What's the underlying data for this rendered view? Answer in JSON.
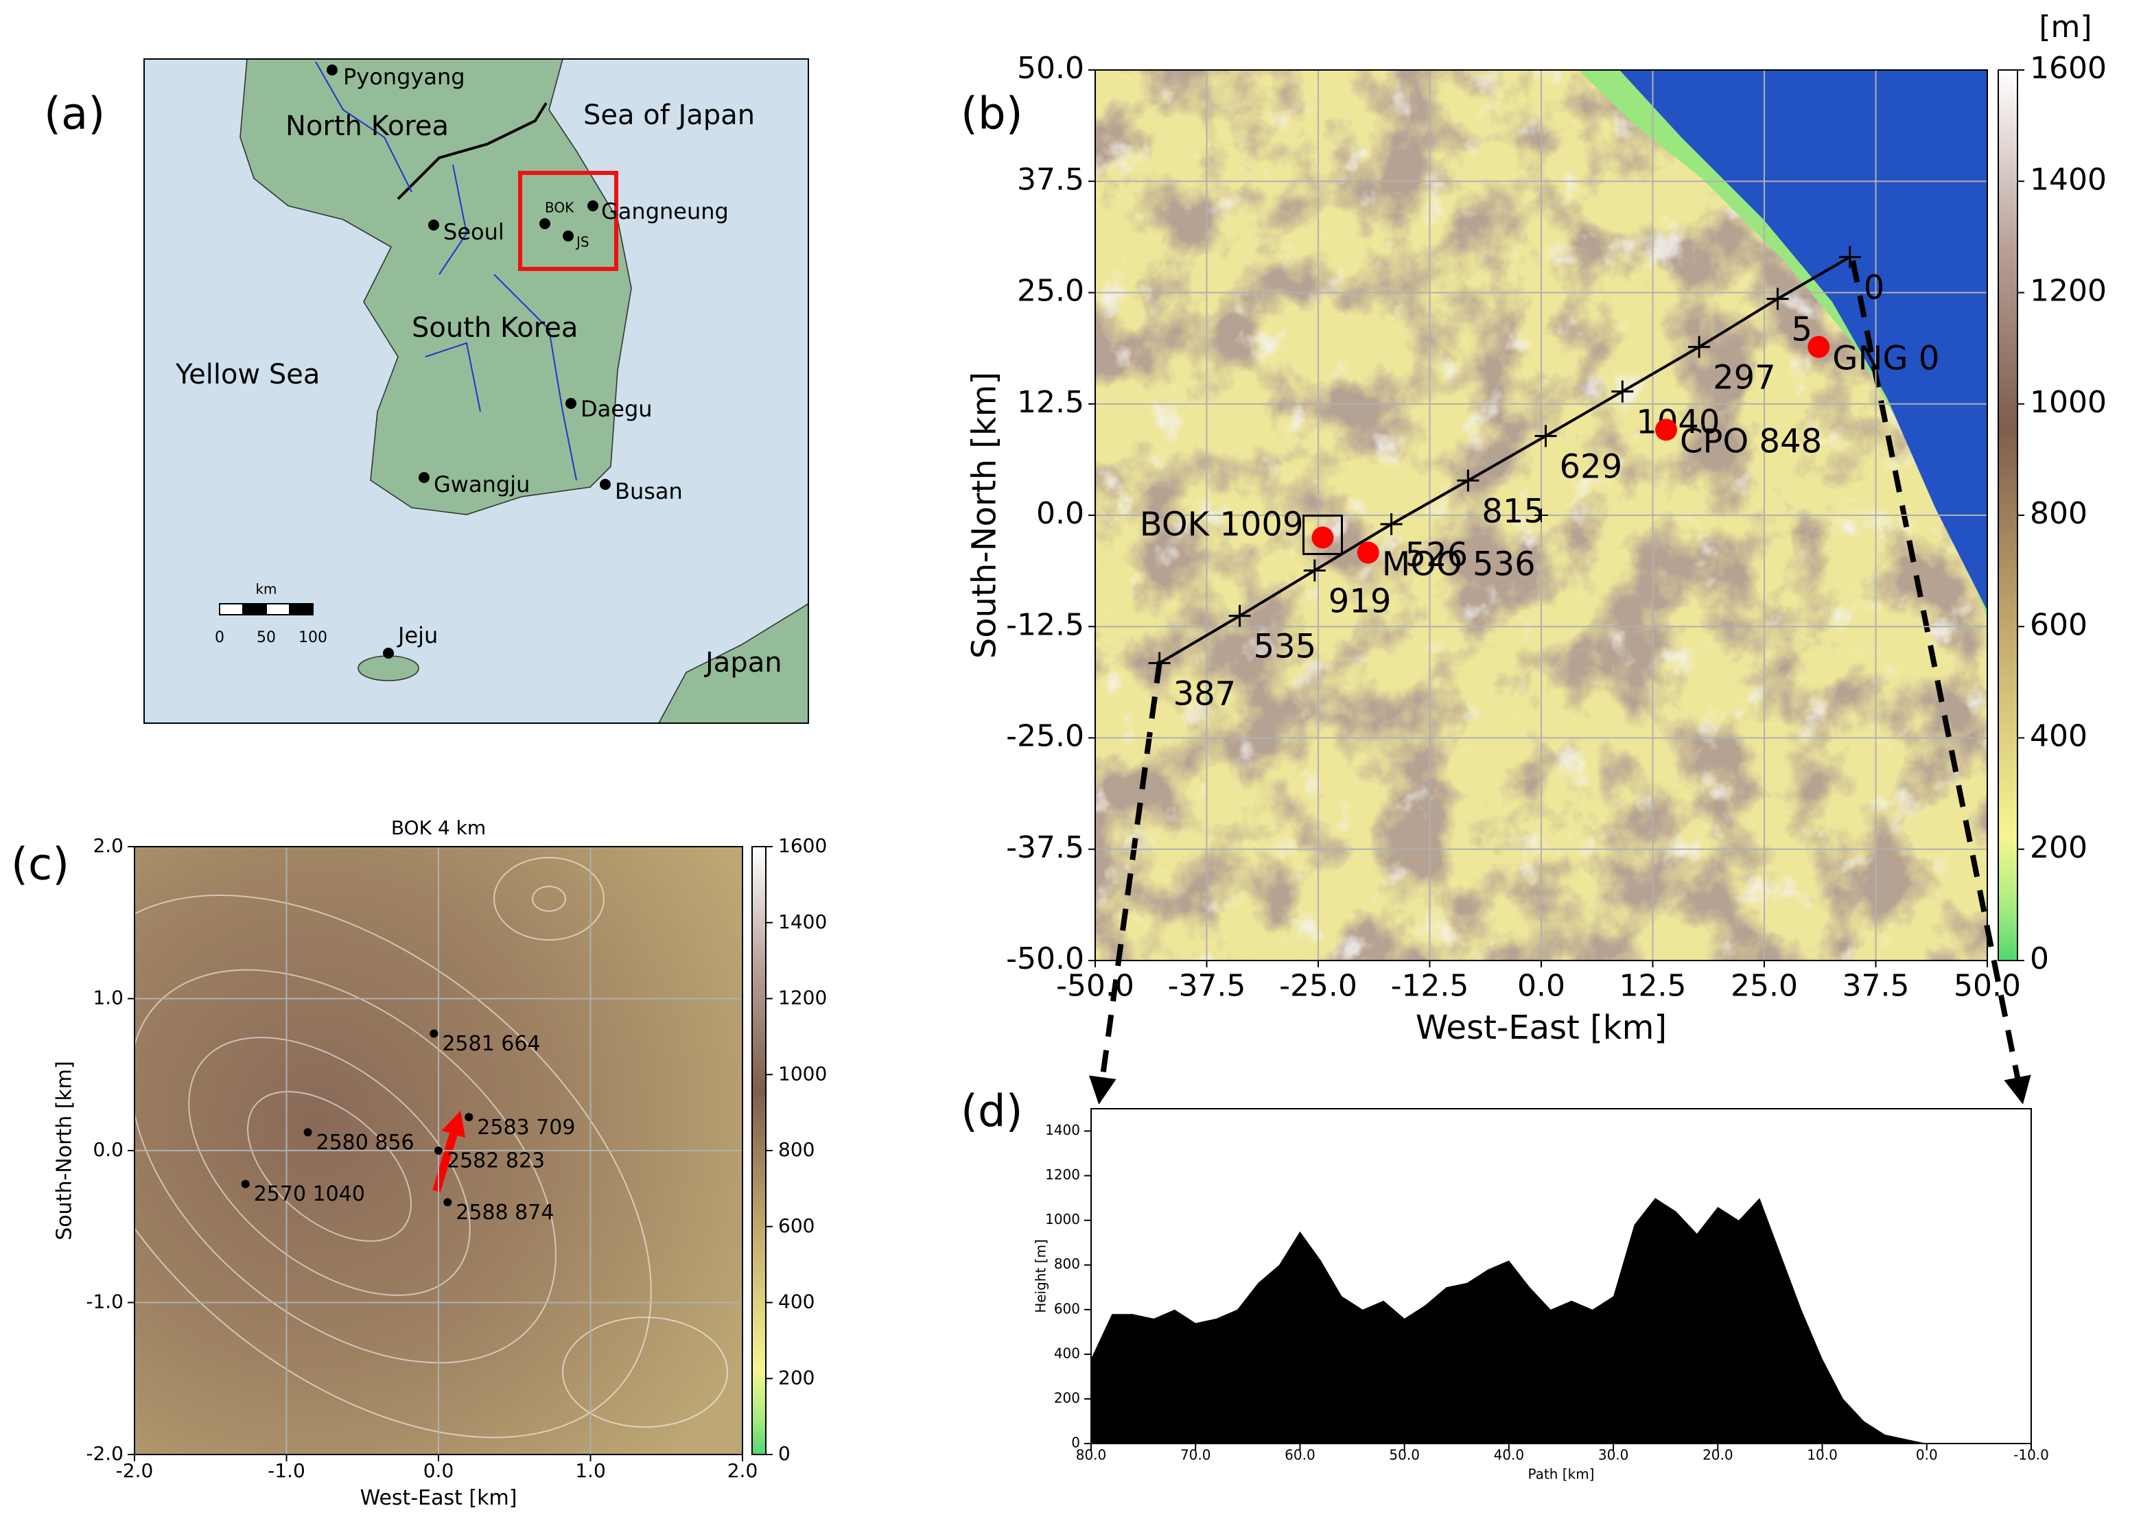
{
  "chart_data": [
    {
      "type": "map",
      "panel_label": "(a)",
      "places": [
        "Pyongyang",
        "North Korea",
        "Sea of Japan",
        "BOK",
        "Gangneung",
        "Seoul",
        "JS",
        "South Korea",
        "Yellow Sea",
        "Daegu",
        "Gwangju",
        "Busan",
        "Jeju",
        "Japan"
      ],
      "scale_bar": {
        "unit": "km",
        "ticks": [
          0,
          50,
          100
        ]
      }
    },
    {
      "type": "heatmap",
      "panel_label": "(b)",
      "xlabel": "West-East [km]",
      "ylabel": "South-North [km]",
      "xlim": [
        -50,
        50
      ],
      "ylim": [
        -50,
        50
      ],
      "xticks": [
        {
          "value": -50,
          "label": "-50.0"
        },
        {
          "value": -37.5,
          "label": "-37.5"
        },
        {
          "value": -25,
          "label": "-25.0"
        },
        {
          "value": -12.5,
          "label": "-12.5"
        },
        {
          "value": 0,
          "label": "0.0"
        },
        {
          "value": 12.5,
          "label": "12.5"
        },
        {
          "value": 25,
          "label": "25.0"
        },
        {
          "value": 37.5,
          "label": "37.5"
        },
        {
          "value": 50,
          "label": "50.0"
        }
      ],
      "yticks": [
        {
          "value": -50,
          "label": "-50.0"
        },
        {
          "value": -37.5,
          "label": "-37.5"
        },
        {
          "value": -25,
          "label": "-25.0"
        },
        {
          "value": -12.5,
          "label": "-12.5"
        },
        {
          "value": 0,
          "label": "0.0"
        },
        {
          "value": 12.5,
          "label": "12.5"
        },
        {
          "value": 25,
          "label": "25.0"
        },
        {
          "value": 37.5,
          "label": "37.5"
        },
        {
          "value": 50,
          "label": "50.0"
        }
      ],
      "grid": true,
      "colorbar": {
        "label": "[m]",
        "lim": [
          0,
          1600
        ],
        "ticks": [
          0,
          200,
          400,
          600,
          800,
          1000,
          1200,
          1400,
          1600
        ]
      },
      "stations": {
        "names": [
          "BOK 1009",
          "MOO 536",
          "CPO 848",
          "GNG 0"
        ],
        "x": [
          -24.5,
          -19.4,
          14,
          31.1
        ],
        "y": [
          -2.5,
          -4.2,
          9.6,
          18.9
        ],
        "color": "#ff0000"
      },
      "path": {
        "x": [
          -42.8,
          -33.8,
          -25.4,
          -16.8,
          -8.2,
          0.5,
          9.1,
          17.7,
          26.5,
          34.6
        ],
        "y": [
          -16.6,
          -11.3,
          -6.2,
          -1.0,
          3.9,
          8.9,
          13.9,
          18.9,
          24.3,
          29.0
        ],
        "labels": [
          387,
          535,
          919,
          526,
          815,
          629,
          1040,
          297,
          5,
          0
        ]
      }
    },
    {
      "type": "heatmap",
      "title": "BOK 4 km",
      "panel_label": "(c)",
      "xlabel": "West-East [km]",
      "ylabel": "South-North [km]",
      "xlim": [
        -2,
        2
      ],
      "ylim": [
        -2,
        2
      ],
      "xticks": [
        {
          "value": -2,
          "label": "-2.0"
        },
        {
          "value": -1,
          "label": "-1.0"
        },
        {
          "value": 0,
          "label": "0.0"
        },
        {
          "value": 1,
          "label": "1.0"
        },
        {
          "value": 2,
          "label": "2.0"
        }
      ],
      "yticks": [
        {
          "value": -2,
          "label": "-2.0"
        },
        {
          "value": -1,
          "label": "-1.0"
        },
        {
          "value": 0,
          "label": "0.0"
        },
        {
          "value": 1,
          "label": "1.0"
        },
        {
          "value": 2,
          "label": "2.0"
        }
      ],
      "grid": true,
      "colorbar": {
        "lim": [
          0,
          1600
        ],
        "ticks": [
          0,
          200,
          400,
          600,
          800,
          1000,
          1200,
          1400,
          1600
        ]
      },
      "points": {
        "labels": [
          "2581 664",
          "2583 709",
          "2580 856",
          "2582 823",
          "2570 1040",
          "2588 874"
        ],
        "x": [
          -0.03,
          0.2,
          -0.86,
          0.0,
          -1.27,
          0.06
        ],
        "y": [
          0.77,
          0.22,
          0.12,
          0.0,
          -0.22,
          -0.34
        ]
      }
    },
    {
      "type": "area",
      "panel_label": "(d)",
      "xlabel": "Path [km]",
      "ylabel": "Height [m]",
      "xlim": [
        80,
        -10
      ],
      "ylim": [
        0,
        1500
      ],
      "xticks": [
        {
          "value": 80,
          "label": "80.0"
        },
        {
          "value": 70,
          "label": "70.0"
        },
        {
          "value": 60,
          "label": "60.0"
        },
        {
          "value": 50,
          "label": "50.0"
        },
        {
          "value": 40,
          "label": "40.0"
        },
        {
          "value": 30,
          "label": "30.0"
        },
        {
          "value": 20,
          "label": "20.0"
        },
        {
          "value": 10,
          "label": "10.0"
        },
        {
          "value": 0,
          "label": "0.0"
        },
        {
          "value": -10,
          "label": "-10.0"
        }
      ],
      "yticks": [
        0,
        200,
        400,
        600,
        800,
        1000,
        1200,
        1400
      ],
      "color": "#000000",
      "x": [
        80,
        78,
        76,
        74,
        72,
        70,
        68,
        66,
        64,
        62,
        60,
        58,
        56,
        54,
        52,
        50,
        48,
        46,
        44,
        42,
        40,
        38,
        36,
        34,
        32,
        30,
        28,
        26,
        24,
        22,
        20,
        18,
        16,
        14,
        12,
        10,
        8,
        6,
        4,
        2,
        0
      ],
      "values": [
        380,
        580,
        580,
        560,
        600,
        540,
        560,
        600,
        720,
        800,
        950,
        820,
        660,
        600,
        640,
        560,
        620,
        700,
        720,
        780,
        820,
        700,
        600,
        640,
        600,
        660,
        980,
        1100,
        1040,
        940,
        1060,
        1000,
        1100,
        850,
        600,
        380,
        200,
        100,
        40,
        20,
        0
      ]
    }
  ]
}
